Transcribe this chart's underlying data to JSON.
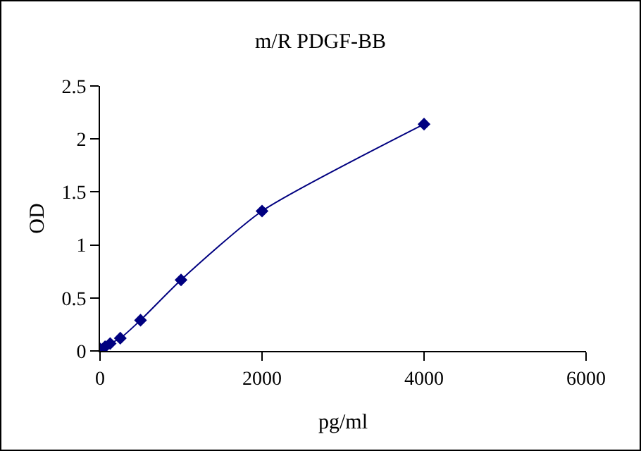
{
  "chart_data": {
    "type": "line",
    "title": "m/R PDGF-BB",
    "xlabel": "pg/ml",
    "ylabel": "OD",
    "x": [
      0,
      62.5,
      125,
      250,
      500,
      1000,
      2000,
      4000
    ],
    "series": [
      {
        "color": "#000080",
        "values": [
          0.02,
          0.04,
          0.07,
          0.12,
          0.29,
          0.67,
          1.32,
          2.14
        ]
      }
    ],
    "xlim": [
      0,
      6000
    ],
    "xticks": [
      0,
      2000,
      4000,
      6000
    ],
    "ylim": [
      0,
      2.5
    ],
    "yticks": [
      0,
      0.5,
      1,
      1.5,
      2,
      2.5
    ],
    "grid": false,
    "legend": false,
    "marker": "diamond",
    "line_style": "solid"
  }
}
